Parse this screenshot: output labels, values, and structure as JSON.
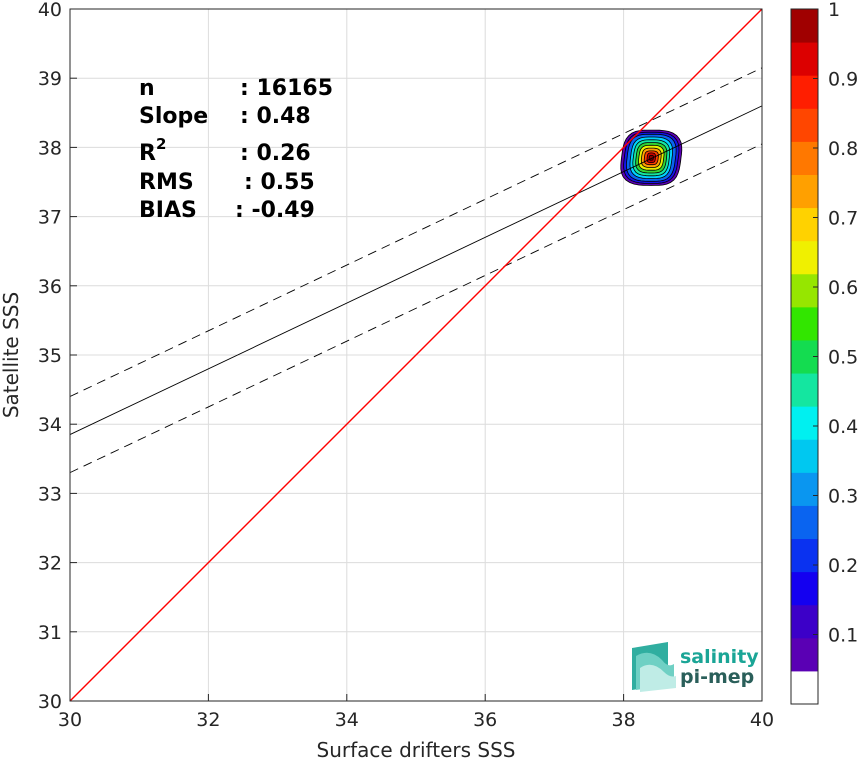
{
  "chart_data": {
    "type": "scatter",
    "subtype": "density-contour",
    "xlabel": "Surface drifters SSS",
    "ylabel": "Satellite SSS",
    "xlim": [
      30,
      40
    ],
    "ylim": [
      30,
      40
    ],
    "xticks": [
      "30",
      "32",
      "34",
      "36",
      "38",
      "40"
    ],
    "yticks": [
      "30",
      "31",
      "32",
      "33",
      "34",
      "35",
      "36",
      "37",
      "38",
      "39",
      "40"
    ],
    "grid": true,
    "stats": [
      {
        "label": "n",
        "value": ": 16165"
      },
      {
        "label": "Slope",
        "value": ": 0.48"
      },
      {
        "label": "R",
        "sup": "2",
        "value": ": 0.26"
      },
      {
        "label": "RMS",
        "value": ": 0.55"
      },
      {
        "label": "BIAS",
        "value": ": -0.49"
      }
    ],
    "lines": {
      "identity": {
        "color": "#ff0000",
        "from": [
          30,
          30
        ],
        "to": [
          40,
          40
        ]
      },
      "regression": {
        "color": "#000000",
        "style": "solid",
        "from": [
          30,
          33.85
        ],
        "to": [
          40,
          38.6
        ]
      },
      "upper_bound": {
        "color": "#000000",
        "style": "dashed",
        "from": [
          30,
          34.4
        ],
        "to": [
          40,
          39.15
        ]
      },
      "lower_bound": {
        "color": "#000000",
        "style": "dashed",
        "from": [
          30,
          33.3
        ],
        "to": [
          40,
          38.05
        ]
      }
    },
    "density_peak": {
      "x": 38.4,
      "y": 37.85
    },
    "density_levels": [
      {
        "level": 0.05,
        "color": "#5a00b4",
        "rx": 0.43,
        "ry": 0.4
      },
      {
        "level": 0.15,
        "color": "#1414e6",
        "rx": 0.39,
        "ry": 0.37
      },
      {
        "level": 0.25,
        "color": "#0a64f0",
        "rx": 0.35,
        "ry": 0.34
      },
      {
        "level": 0.35,
        "color": "#00d2ff",
        "rx": 0.3,
        "ry": 0.3
      },
      {
        "level": 0.45,
        "color": "#14e6a0",
        "rx": 0.26,
        "ry": 0.26
      },
      {
        "level": 0.55,
        "color": "#32d232",
        "rx": 0.22,
        "ry": 0.22
      },
      {
        "level": 0.65,
        "color": "#e6f000",
        "rx": 0.18,
        "ry": 0.18
      },
      {
        "level": 0.75,
        "color": "#ffa000",
        "rx": 0.14,
        "ry": 0.14
      },
      {
        "level": 0.85,
        "color": "#ff3c00",
        "rx": 0.1,
        "ry": 0.1
      },
      {
        "level": 0.95,
        "color": "#c80000",
        "rx": 0.06,
        "ry": 0.07
      },
      {
        "level": 1.0,
        "color": "#8b0000",
        "rx": 0.03,
        "ry": 0.035
      }
    ],
    "colorbar": {
      "min": 0,
      "max": 1,
      "ticks": [
        "0.1",
        "0.2",
        "0.3",
        "0.4",
        "0.5",
        "0.6",
        "0.7",
        "0.8",
        "0.9",
        "1"
      ],
      "tick_values": [
        0.1,
        0.2,
        0.3,
        0.4,
        0.5,
        0.6,
        0.7,
        0.8,
        0.9,
        1.0
      ],
      "bands": [
        "#ffffff",
        "#5a00b4",
        "#3c00c8",
        "#1400f0",
        "#0a32f0",
        "#0a64f0",
        "#0a96f0",
        "#00c8f0",
        "#00f0f0",
        "#14e6a0",
        "#14dc50",
        "#32e600",
        "#96e600",
        "#f0f000",
        "#ffd200",
        "#ffa000",
        "#ff7800",
        "#ff4600",
        "#ff1e00",
        "#dc0000",
        "#a00000"
      ]
    }
  },
  "logo": {
    "line1": "salinity",
    "line2": "pi-mep"
  }
}
